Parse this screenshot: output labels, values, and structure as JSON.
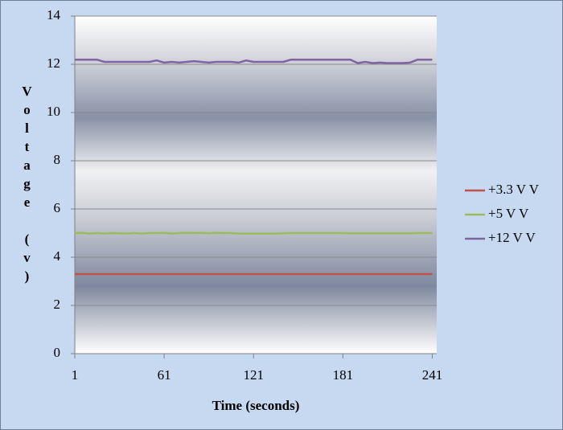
{
  "chart_data": {
    "type": "line",
    "x_label": "Time (seconds)",
    "y_label": "Voltage (v)",
    "x": [
      1,
      6,
      11,
      16,
      21,
      26,
      31,
      36,
      41,
      46,
      51,
      56,
      61,
      66,
      71,
      76,
      81,
      86,
      91,
      96,
      101,
      106,
      111,
      116,
      121,
      126,
      131,
      136,
      141,
      146,
      151,
      156,
      161,
      166,
      171,
      176,
      181,
      186,
      191,
      196,
      201,
      206,
      211,
      216,
      221,
      226,
      231,
      236,
      241
    ],
    "series": [
      {
        "name": "+3.3 V V",
        "color": "#c0504d",
        "values": [
          3.3,
          3.3,
          3.3,
          3.3,
          3.3,
          3.3,
          3.3,
          3.3,
          3.3,
          3.3,
          3.3,
          3.3,
          3.3,
          3.3,
          3.3,
          3.3,
          3.3,
          3.3,
          3.3,
          3.3,
          3.3,
          3.3,
          3.3,
          3.3,
          3.3,
          3.3,
          3.3,
          3.3,
          3.3,
          3.3,
          3.3,
          3.3,
          3.3,
          3.3,
          3.3,
          3.3,
          3.3,
          3.3,
          3.3,
          3.3,
          3.3,
          3.3,
          3.3,
          3.3,
          3.3,
          3.3,
          3.3,
          3.3,
          3.3
        ]
      },
      {
        "name": "+5 V V",
        "color": "#9bbb59",
        "values": [
          5.0,
          5.01,
          4.98,
          5.0,
          4.98,
          5.0,
          4.99,
          4.98,
          5.0,
          4.98,
          5.0,
          5.0,
          5.01,
          4.98,
          5.0,
          5.01,
          5.0,
          5.01,
          4.99,
          5.01,
          5.0,
          5.0,
          4.98,
          4.98,
          4.98,
          4.98,
          4.98,
          4.98,
          4.99,
          5.0,
          5.0,
          5.0,
          5.0,
          5.0,
          5.0,
          5.0,
          5.0,
          4.99,
          4.99,
          4.99,
          4.99,
          4.99,
          4.99,
          4.99,
          4.99,
          4.99,
          5.0,
          5.0,
          5.0
        ]
      },
      {
        "name": "+12 V V",
        "color": "#8064a2",
        "values": [
          12.19,
          12.19,
          12.19,
          12.19,
          12.1,
          12.1,
          12.1,
          12.1,
          12.1,
          12.1,
          12.1,
          12.16,
          12.07,
          12.1,
          12.07,
          12.1,
          12.13,
          12.1,
          12.07,
          12.1,
          12.1,
          12.1,
          12.07,
          12.16,
          12.1,
          12.1,
          12.1,
          12.1,
          12.1,
          12.19,
          12.19,
          12.19,
          12.19,
          12.19,
          12.19,
          12.19,
          12.19,
          12.19,
          12.05,
          12.1,
          12.05,
          12.07,
          12.05,
          12.05,
          12.05,
          12.07,
          12.19,
          12.19,
          12.19
        ]
      }
    ],
    "xlim": [
      1,
      244
    ],
    "xticks": [
      1,
      61,
      121,
      181,
      241
    ],
    "ylim": [
      0,
      14
    ],
    "yticks": [
      0,
      2,
      4,
      6,
      8,
      10,
      12,
      14
    ],
    "grid": true,
    "legend": "right"
  }
}
